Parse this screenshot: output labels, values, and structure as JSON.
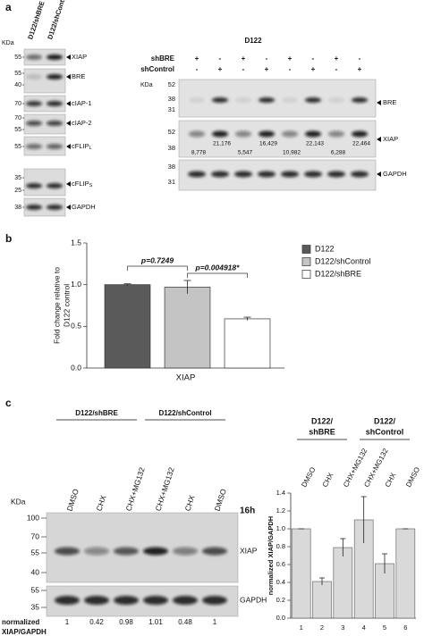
{
  "panel_a": {
    "label": "a",
    "left_blot": {
      "lanes": [
        "D122/shBRE",
        "D122/shControl"
      ],
      "kda": "KDa",
      "rows": [
        {
          "markers": [
            "55"
          ],
          "protein": "XIAP"
        },
        {
          "markers": [
            "55",
            "40"
          ],
          "protein": "BRE"
        },
        {
          "markers": [
            "70"
          ],
          "protein": "cIAP-1"
        },
        {
          "markers": [
            "70",
            "55"
          ],
          "protein": "cIAP-2"
        },
        {
          "markers": [
            "55"
          ],
          "protein": "cFLIP",
          "subscript": "L"
        },
        {
          "markers": [
            "35",
            "25"
          ],
          "protein": "cFLIP",
          "subscript": "S"
        },
        {
          "markers": [
            "38"
          ],
          "protein": "GAPDH"
        }
      ]
    },
    "right_blot": {
      "title": "D122",
      "kda": "KDa",
      "conditions": [
        {
          "name": "shBRE",
          "signs": [
            "+",
            "-",
            "+",
            "-",
            "+",
            "-",
            "+",
            "-"
          ]
        },
        {
          "name": "shControl",
          "signs": [
            "-",
            "+",
            "-",
            "+",
            "-",
            "+",
            "-",
            "+"
          ]
        }
      ],
      "rows": [
        {
          "markers": [
            "52",
            "38",
            "31"
          ],
          "protein": "BRE"
        },
        {
          "markers": [
            "52",
            "38"
          ],
          "protein": "XIAP",
          "quantities": [
            "8,778",
            "21,176",
            "5,547",
            "16,429",
            "10,982",
            "22,143",
            "6,288",
            "22,464"
          ]
        },
        {
          "markers": [
            "38",
            "31"
          ],
          "protein": "GAPDH"
        }
      ]
    }
  },
  "panel_b": {
    "label": "b"
  },
  "panel_c": {
    "label": "c",
    "blot": {
      "groups": [
        "D122/shBRE",
        "D122/shControl"
      ],
      "lanes": [
        "DMSO",
        "CHX",
        "CHX+MG132",
        "CHX+MG132",
        "CHX",
        "DMSO"
      ],
      "time": "16h",
      "kda": "KDa",
      "rows": [
        {
          "markers": [
            "100",
            "70",
            "55",
            "40"
          ],
          "protein": "XIAP"
        },
        {
          "markers": [
            "55",
            "35"
          ],
          "protein": "GAPDH"
        }
      ],
      "normalized_label": [
        "normalized",
        "XIAP/GAPDH"
      ],
      "normalized_values": [
        "1",
        "0.42",
        "0.98",
        "1.01",
        "0.48",
        "1"
      ]
    }
  },
  "chart_data": [
    {
      "type": "bar",
      "ylabel": [
        "Fold change relative to",
        "D122 control"
      ],
      "categories": [
        "XIAP"
      ],
      "series": [
        {
          "name": "D122",
          "color": "#5a5a5a",
          "values": [
            1.0
          ],
          "errors": [
            0.01
          ]
        },
        {
          "name": "D122/shControl",
          "color": "#c4c4c4",
          "values": [
            0.97
          ],
          "errors": [
            0.08
          ]
        },
        {
          "name": "D122/shBRE",
          "color": "#ffffff",
          "values": [
            0.59
          ],
          "errors": [
            0.02
          ]
        }
      ],
      "annotations": [
        "p=0.7249",
        "p=0.004918*"
      ],
      "ylim": [
        0,
        1.5
      ],
      "yticks": [
        {
          "value": 0,
          "label": "0.0"
        },
        0.5,
        {
          "value": 1,
          "label": "1.0"
        },
        1.5
      ],
      "legend": "right"
    },
    {
      "type": "bar",
      "ylabel": "normalized XIAP/GAPDH",
      "groups": [
        [
          "D122/",
          "shBRE"
        ],
        [
          "D122/",
          "shControl"
        ]
      ],
      "lane_labels": [
        "DMSO",
        "CHX",
        "CHX+MG132",
        "CHX+MG132",
        "CHX",
        "DMSO"
      ],
      "categories": [
        "1",
        "2",
        "3",
        "4",
        "5",
        "6"
      ],
      "values": [
        1.0,
        0.41,
        0.79,
        1.1,
        0.61,
        1.0
      ],
      "errors": [
        0,
        0.04,
        0.1,
        0.26,
        0.11,
        0
      ],
      "color": "#d9d9d9",
      "ylim": [
        0,
        1.4
      ],
      "yticks": [
        {
          "value": 0,
          "label": "0.0"
        },
        0.2,
        0.4,
        0.6,
        0.8,
        {
          "value": 1,
          "label": "1.0"
        },
        1.2,
        1.4
      ]
    }
  ]
}
